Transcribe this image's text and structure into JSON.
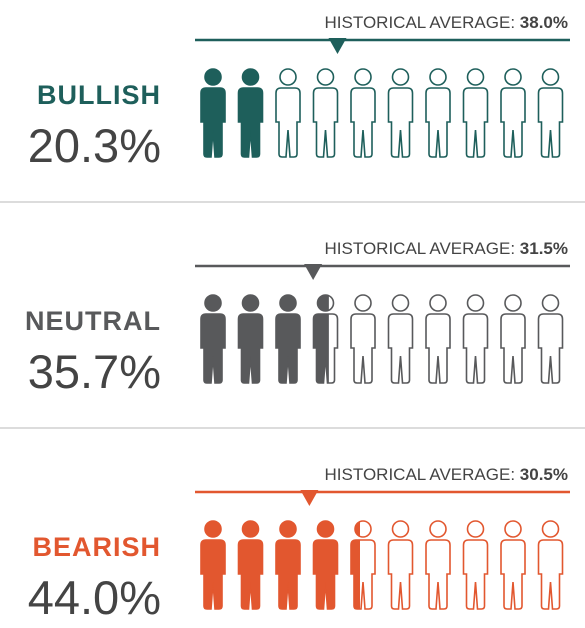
{
  "chart_data": [
    {
      "type": "pictograph",
      "title": "BULLISH",
      "values": [
        20.3
      ],
      "value_labels": [
        "20.3%"
      ],
      "color": "#1e5f5b",
      "xlim": [
        0,
        100
      ],
      "reference": {
        "label": "HISTORICAL AVERAGE:",
        "value": 38.0,
        "value_label": "38.0%"
      }
    },
    {
      "type": "pictograph",
      "title": "NEUTRAL",
      "values": [
        35.7
      ],
      "value_labels": [
        "35.7%"
      ],
      "color": "#58595b",
      "xlim": [
        0,
        100
      ],
      "reference": {
        "label": "HISTORICAL AVERAGE:",
        "value": 31.5,
        "value_label": "31.5%"
      }
    },
    {
      "type": "pictograph",
      "title": "BEARISH",
      "values": [
        44.0
      ],
      "value_labels": [
        "44.0%"
      ],
      "color": "#e2572f",
      "xlim": [
        0,
        100
      ],
      "reference": {
        "label": "HISTORICAL AVERAGE:",
        "value": 30.5,
        "value_label": "30.5%"
      }
    }
  ]
}
